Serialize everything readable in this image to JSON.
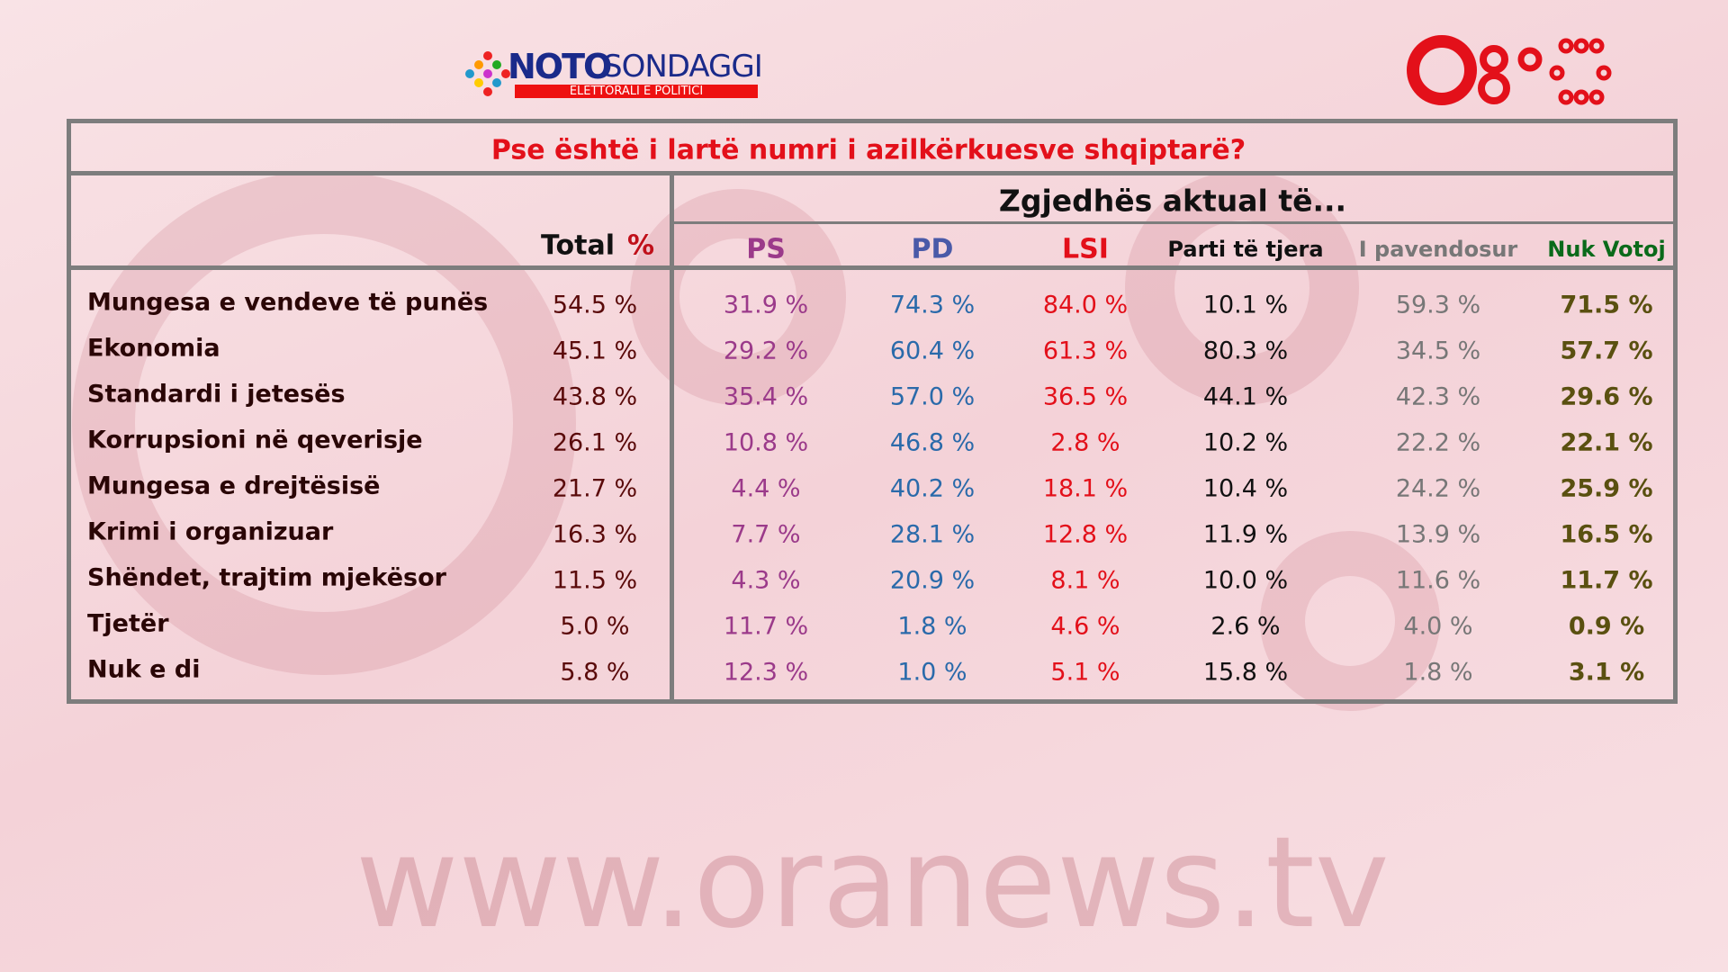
{
  "logo": {
    "noto": "NOTO",
    "sondaggi": "SONDAGGI",
    "tagline": "ELETTORALI E POLITICI"
  },
  "watermark": "www.oranews.tv",
  "table": {
    "title": "Pse është i lartë numri i azilkërkuesve shqiptarë?",
    "group_header": "Zgjedhës aktual të...",
    "total_header": "Total",
    "total_unit": "%",
    "columns": [
      "PS",
      "PD",
      "LSI",
      "Parti të tjera",
      "I pavendosur",
      "Nuk Votoj"
    ],
    "rows": [
      {
        "label": "Mungesa e vendeve të punës",
        "values": [
          "54.5 %",
          "31.9 %",
          "74.3 %",
          "84.0 %",
          "10.1 %",
          "59.3 %",
          "71.5 %"
        ]
      },
      {
        "label": "Ekonomia",
        "values": [
          "45.1 %",
          "29.2 %",
          "60.4 %",
          "61.3 %",
          "80.3 %",
          "34.5 %",
          "57.7 %"
        ]
      },
      {
        "label": "Standardi i jetesës",
        "values": [
          "43.8 %",
          "35.4 %",
          "57.0 %",
          "36.5 %",
          "44.1 %",
          "42.3 %",
          "29.6 %"
        ]
      },
      {
        "label": "Korrupsioni në qeverisje",
        "values": [
          "26.1 %",
          "10.8 %",
          "46.8 %",
          "2.8 %",
          "10.2 %",
          "22.2 %",
          "22.1 %"
        ]
      },
      {
        "label": "Mungesa e drejtësisë",
        "values": [
          "21.7 %",
          "4.4 %",
          "40.2 %",
          "18.1 %",
          "10.4 %",
          "24.2 %",
          "25.9 %"
        ]
      },
      {
        "label": "Krimi i organizuar",
        "values": [
          "16.3 %",
          "7.7 %",
          "28.1 %",
          "12.8 %",
          "11.9 %",
          "13.9 %",
          "16.5 %"
        ]
      },
      {
        "label": "Shëndet, trajtim mjekësor",
        "values": [
          "11.5 %",
          "4.3 %",
          "20.9 %",
          "8.1 %",
          "10.0 %",
          "11.6 %",
          "11.7 %"
        ]
      },
      {
        "label": "Tjetër",
        "values": [
          "5.0 %",
          "11.7 %",
          "1.8 %",
          "4.6 %",
          "2.6 %",
          "4.0 %",
          "0.9 %"
        ]
      },
      {
        "label": "Nuk e di",
        "values": [
          "5.8 %",
          "12.3 %",
          "1.0 %",
          "5.1 %",
          "15.8 %",
          "1.8 %",
          "3.1 %"
        ]
      }
    ]
  }
}
